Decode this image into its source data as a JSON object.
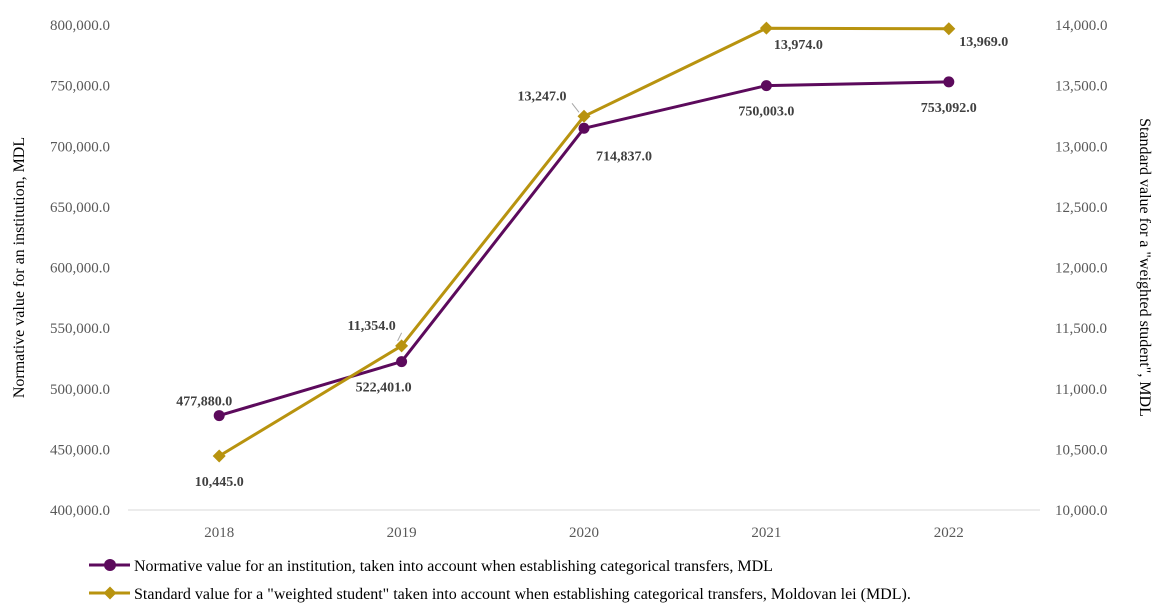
{
  "chart_data": {
    "type": "line",
    "categories": [
      "2018",
      "2019",
      "2020",
      "2021",
      "2022"
    ],
    "title": "",
    "y_left": {
      "label": "Normative value for an institution, MDL",
      "min": 400000,
      "max": 800000,
      "step": 50000,
      "tick_labels": [
        "400,000.0",
        "450,000.0",
        "500,000.0",
        "550,000.0",
        "600,000.0",
        "650,000.0",
        "700,000.0",
        "750,000.0",
        "800,000.0"
      ]
    },
    "y_right": {
      "label": "Standard value for a \"weighted student\", MDL",
      "min": 10000,
      "max": 14000,
      "step": 500,
      "tick_labels": [
        "10,000.0",
        "10,500.0",
        "11,000.0",
        "11,500.0",
        "12,000.0",
        "12,500.0",
        "13,000.0",
        "13,500.0",
        "14,000.0"
      ]
    },
    "gridlines": false,
    "legend_position": "bottom-left",
    "series": [
      {
        "name": "Normative value for an institution, taken into account when establishing categorical transfers, MDL",
        "axis": "left",
        "color": "#5c0a5c",
        "marker": "circle",
        "values": [
          477880,
          522401,
          714837,
          750003,
          753092
        ],
        "labels": [
          "477,880.0",
          "522,401.0",
          "714,837.0",
          "750,003.0",
          "753,092.0"
        ]
      },
      {
        "name": "Standard value for a \"weighted student\" taken into account when establishing categorical transfers, Moldovan lei (MDL).",
        "axis": "right",
        "color": "#b8930f",
        "marker": "diamond",
        "values": [
          10445,
          11354,
          13247,
          13974,
          13969
        ],
        "labels": [
          "10,445.0",
          "11,354.0",
          "13,247.0",
          "13,974.0",
          "13,969.0"
        ]
      }
    ]
  }
}
